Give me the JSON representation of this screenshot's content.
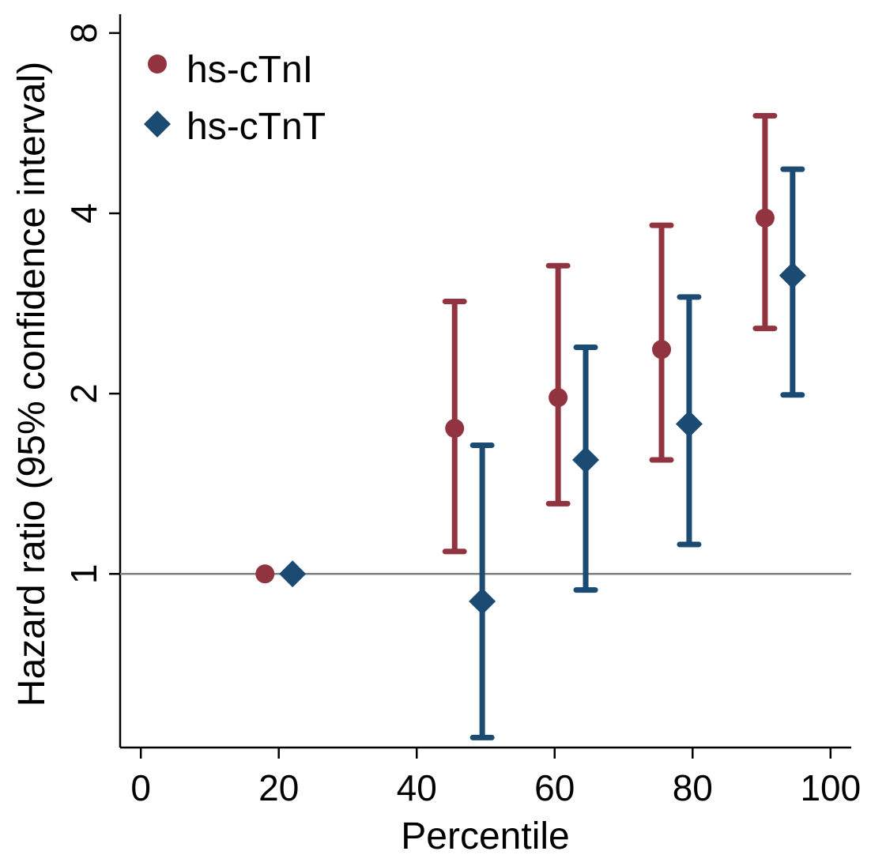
{
  "chart_data": {
    "type": "scatter",
    "title": "",
    "xlabel": "Percentile",
    "ylabel": "Hazard ratio (95% confidence interval)",
    "xlim": [
      -3,
      103
    ],
    "ylim": [
      0.513,
      8.6
    ],
    "y_scale": "log2",
    "grid": false,
    "legend_position": "top-left",
    "x_ticks": [
      0,
      20,
      40,
      60,
      80,
      100
    ],
    "y_ticks": [
      1,
      2,
      4,
      8
    ],
    "reference_line": 1,
    "reference_color": "#808080",
    "series": [
      {
        "name": "hs-cTnI",
        "marker": "circle",
        "color": "#913440",
        "points": [
          {
            "x": 18,
            "y": 1.0,
            "lower": null,
            "upper": null
          },
          {
            "x": 45.5,
            "y": 1.75,
            "lower": 1.09,
            "upper": 2.85
          },
          {
            "x": 60.5,
            "y": 1.97,
            "lower": 1.31,
            "upper": 3.27
          },
          {
            "x": 75.5,
            "y": 2.37,
            "lower": 1.55,
            "upper": 3.82
          },
          {
            "x": 90.5,
            "y": 3.93,
            "lower": 2.57,
            "upper": 5.82
          }
        ]
      },
      {
        "name": "hs-cTnT",
        "marker": "diamond",
        "color": "#1b4a72",
        "points": [
          {
            "x": 22,
            "y": 1.0,
            "lower": null,
            "upper": null
          },
          {
            "x": 49.5,
            "y": 0.9,
            "lower": 0.533,
            "upper": 1.64
          },
          {
            "x": 64.5,
            "y": 1.55,
            "lower": 0.94,
            "upper": 2.39
          },
          {
            "x": 79.5,
            "y": 1.78,
            "lower": 1.12,
            "upper": 2.9
          },
          {
            "x": 94.5,
            "y": 3.15,
            "lower": 1.99,
            "upper": 4.74
          }
        ]
      }
    ]
  }
}
